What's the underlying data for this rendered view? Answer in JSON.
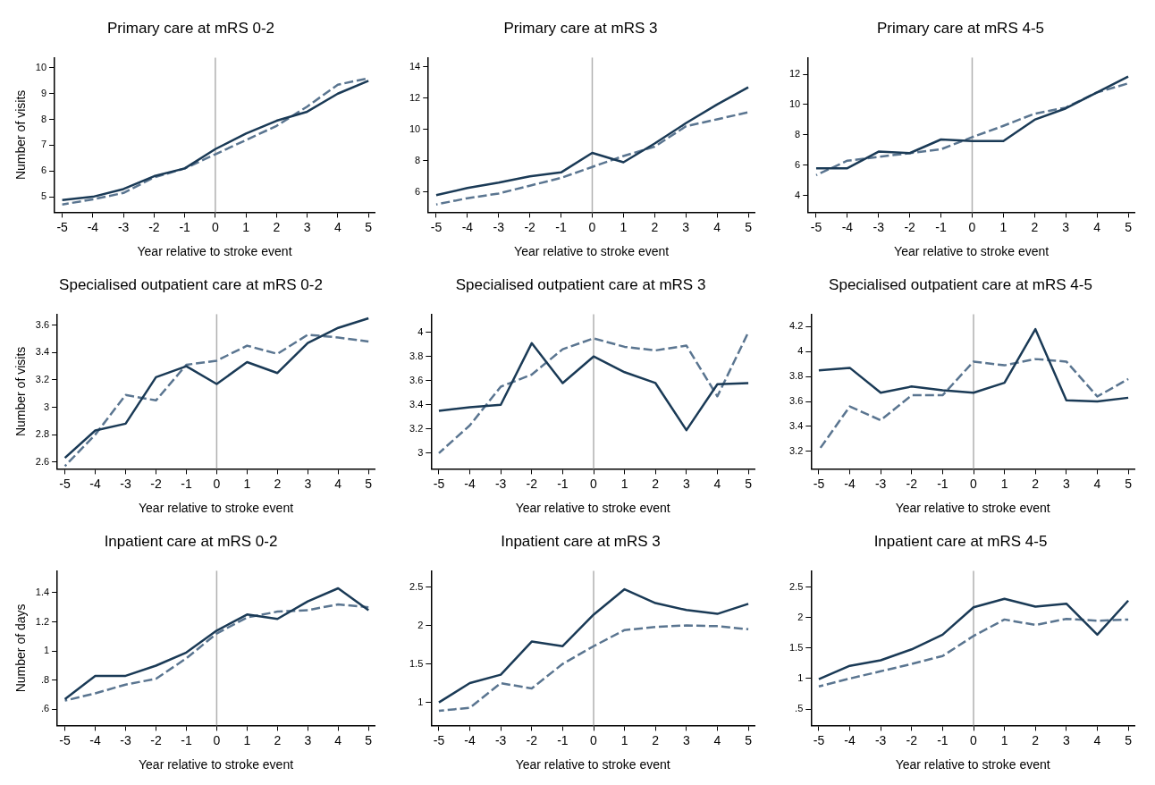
{
  "chart_data": [
    {
      "type": "line",
      "title": "Primary care at mRS 0-2",
      "xlabel": "Year relative to stroke event",
      "ylabel": "Number of visits",
      "x": [
        -5,
        -4,
        -3,
        -2,
        -1,
        0,
        1,
        2,
        3,
        4,
        5
      ],
      "xlim": [
        -5.25,
        5.2
      ],
      "xticks": [
        -5,
        -4,
        -3,
        -2,
        -1,
        0,
        1,
        2,
        3,
        4,
        5
      ],
      "ylim": [
        4.4,
        10.4
      ],
      "yticks": [
        5,
        6,
        7,
        8,
        9,
        10
      ],
      "grid": false,
      "legend": false,
      "marker": "none",
      "ref_lines": [
        {
          "axis": "x",
          "value": 0,
          "color": "#b0b0b0"
        }
      ],
      "series": [
        {
          "color": "#1a3a56",
          "line_style": "solid",
          "values": [
            4.87,
            5.0,
            5.3,
            5.8,
            6.1,
            6.85,
            7.45,
            7.95,
            8.3,
            9.0,
            9.5
          ]
        },
        {
          "color": "#5a7590",
          "line_style": "dashed",
          "values": [
            4.7,
            4.9,
            5.15,
            5.75,
            6.1,
            6.65,
            7.2,
            7.75,
            8.5,
            9.35,
            9.6
          ]
        }
      ]
    },
    {
      "type": "line",
      "title": "Primary care at mRS 3",
      "xlabel": "Year relative to stroke event",
      "x": [
        -5,
        -4,
        -3,
        -2,
        -1,
        0,
        1,
        2,
        3,
        4,
        5
      ],
      "xlim": [
        -5.25,
        5.2
      ],
      "xticks": [
        -5,
        -4,
        -3,
        -2,
        -1,
        0,
        1,
        2,
        3,
        4,
        5
      ],
      "ylim": [
        4.7,
        14.6
      ],
      "yticks": [
        6,
        8,
        10,
        12,
        14
      ],
      "grid": false,
      "legend": false,
      "marker": "none",
      "ref_lines": [
        {
          "axis": "x",
          "value": 0,
          "color": "#b0b0b0"
        }
      ],
      "series": [
        {
          "color": "#1a3a56",
          "line_style": "solid",
          "values": [
            5.8,
            6.25,
            6.6,
            7.0,
            7.25,
            8.5,
            7.9,
            9.1,
            10.4,
            11.6,
            12.7
          ]
        },
        {
          "color": "#5a7590",
          "line_style": "dashed",
          "values": [
            5.2,
            5.6,
            5.9,
            6.4,
            6.9,
            7.6,
            8.3,
            8.9,
            10.2,
            10.65,
            11.1
          ]
        }
      ]
    },
    {
      "type": "line",
      "title": "Primary care at mRS 4-5",
      "xlabel": "Year relative to stroke event",
      "x": [
        -5,
        -4,
        -3,
        -2,
        -1,
        0,
        1,
        2,
        3,
        4,
        5
      ],
      "xlim": [
        -5.25,
        5.2
      ],
      "xticks": [
        -5,
        -4,
        -3,
        -2,
        -1,
        0,
        1,
        2,
        3,
        4,
        5
      ],
      "ylim": [
        2.9,
        13.1
      ],
      "yticks": [
        4,
        6,
        8,
        10,
        12
      ],
      "grid": false,
      "legend": false,
      "marker": "none",
      "ref_lines": [
        {
          "axis": "x",
          "value": 0,
          "color": "#b0b0b0"
        }
      ],
      "series": [
        {
          "color": "#1a3a56",
          "line_style": "solid",
          "values": [
            5.8,
            5.8,
            6.9,
            6.8,
            7.7,
            7.6,
            7.6,
            9.0,
            9.75,
            10.8,
            11.85
          ]
        },
        {
          "color": "#5a7590",
          "line_style": "dashed",
          "values": [
            5.35,
            6.3,
            6.55,
            6.8,
            7.05,
            7.85,
            8.6,
            9.4,
            9.8,
            10.8,
            11.4
          ]
        }
      ]
    },
    {
      "type": "line",
      "title": "Specialised outpatient care at mRS 0-2",
      "xlabel": "Year relative to stroke event",
      "ylabel": "Number of visits",
      "x": [
        -5,
        -4,
        -3,
        -2,
        -1,
        0,
        1,
        2,
        3,
        4,
        5
      ],
      "xlim": [
        -5.25,
        5.2
      ],
      "xticks": [
        -5,
        -4,
        -3,
        -2,
        -1,
        0,
        1,
        2,
        3,
        4,
        5
      ],
      "ylim": [
        2.55,
        3.68
      ],
      "yticks": [
        2.6,
        2.8,
        3,
        3.2,
        3.4,
        3.6
      ],
      "grid": false,
      "legend": false,
      "marker": "none",
      "ref_lines": [
        {
          "axis": "x",
          "value": 0,
          "color": "#b0b0b0"
        }
      ],
      "series": [
        {
          "color": "#1a3a56",
          "line_style": "solid",
          "values": [
            2.63,
            2.83,
            2.88,
            3.22,
            3.3,
            3.17,
            3.33,
            3.25,
            3.47,
            3.58,
            3.65
          ]
        },
        {
          "color": "#5a7590",
          "line_style": "dashed",
          "values": [
            2.57,
            2.8,
            3.09,
            3.05,
            3.31,
            3.34,
            3.45,
            3.39,
            3.53,
            3.51,
            3.48
          ]
        }
      ]
    },
    {
      "type": "line",
      "title": "Specialised outpatient care at mRS 3",
      "xlabel": "Year relative to stroke event",
      "x": [
        -5,
        -4,
        -3,
        -2,
        -1,
        0,
        1,
        2,
        3,
        4,
        5
      ],
      "xlim": [
        -5.25,
        5.2
      ],
      "xticks": [
        -5,
        -4,
        -3,
        -2,
        -1,
        0,
        1,
        2,
        3,
        4,
        5
      ],
      "ylim": [
        2.87,
        4.15
      ],
      "yticks": [
        3,
        3.2,
        3.4,
        3.6,
        3.8,
        4
      ],
      "grid": false,
      "legend": false,
      "marker": "none",
      "ref_lines": [
        {
          "axis": "x",
          "value": 0,
          "color": "#b0b0b0"
        }
      ],
      "series": [
        {
          "color": "#1a3a56",
          "line_style": "solid",
          "values": [
            3.35,
            3.38,
            3.4,
            3.91,
            3.58,
            3.8,
            3.67,
            3.58,
            3.19,
            3.57,
            3.58
          ]
        },
        {
          "color": "#5a7590",
          "line_style": "dashed",
          "values": [
            3.0,
            3.23,
            3.55,
            3.65,
            3.86,
            3.95,
            3.88,
            3.85,
            3.89,
            3.47,
            4.0
          ]
        }
      ]
    },
    {
      "type": "line",
      "title": "Specialised outpatient care at mRS 4-5",
      "xlabel": "Year relative to stroke event",
      "x": [
        -5,
        -4,
        -3,
        -2,
        -1,
        0,
        1,
        2,
        3,
        4,
        5
      ],
      "xlim": [
        -5.25,
        5.2
      ],
      "xticks": [
        -5,
        -4,
        -3,
        -2,
        -1,
        0,
        1,
        2,
        3,
        4,
        5
      ],
      "ylim": [
        3.06,
        4.3
      ],
      "yticks": [
        3.2,
        3.4,
        3.6,
        3.8,
        4,
        4.2
      ],
      "grid": false,
      "legend": false,
      "marker": "none",
      "ref_lines": [
        {
          "axis": "x",
          "value": 0,
          "color": "#b0b0b0"
        }
      ],
      "series": [
        {
          "color": "#1a3a56",
          "line_style": "solid",
          "values": [
            3.85,
            3.87,
            3.67,
            3.72,
            3.69,
            3.67,
            3.75,
            4.18,
            3.61,
            3.6,
            3.63
          ]
        },
        {
          "color": "#5a7590",
          "line_style": "dashed",
          "values": [
            3.21,
            3.56,
            3.45,
            3.65,
            3.65,
            3.92,
            3.89,
            3.94,
            3.92,
            3.64,
            3.78
          ]
        }
      ]
    },
    {
      "type": "line",
      "title": "Inpatient care at mRS 0-2",
      "xlabel": "Year relative to stroke event",
      "ylabel": "Number of days",
      "x": [
        -5,
        -4,
        -3,
        -2,
        -1,
        0,
        1,
        2,
        3,
        4,
        5
      ],
      "xlim": [
        -5.25,
        5.2
      ],
      "xticks": [
        -5,
        -4,
        -3,
        -2,
        -1,
        0,
        1,
        2,
        3,
        4,
        5
      ],
      "ylim": [
        0.49,
        1.55
      ],
      "yticks": [
        {
          "value": 0.6,
          "label": ".6"
        },
        {
          "value": 0.8,
          "label": ".8"
        },
        1,
        1.2,
        1.4
      ],
      "grid": false,
      "legend": false,
      "marker": "none",
      "ref_lines": [
        {
          "axis": "x",
          "value": 0,
          "color": "#b0b0b0"
        }
      ],
      "series": [
        {
          "color": "#1a3a56",
          "line_style": "solid",
          "values": [
            0.67,
            0.83,
            0.83,
            0.9,
            0.99,
            1.14,
            1.25,
            1.22,
            1.34,
            1.43,
            1.28
          ]
        },
        {
          "color": "#5a7590",
          "line_style": "dashed",
          "values": [
            0.66,
            0.71,
            0.77,
            0.81,
            0.95,
            1.12,
            1.23,
            1.27,
            1.28,
            1.32,
            1.3
          ]
        }
      ]
    },
    {
      "type": "line",
      "title": "Inpatient care at mRS 3",
      "xlabel": "Year relative to stroke event",
      "x": [
        -5,
        -4,
        -3,
        -2,
        -1,
        0,
        1,
        2,
        3,
        4,
        5
      ],
      "xlim": [
        -5.25,
        5.2
      ],
      "xticks": [
        -5,
        -4,
        -3,
        -2,
        -1,
        0,
        1,
        2,
        3,
        4,
        5
      ],
      "ylim": [
        0.7,
        2.71
      ],
      "yticks": [
        1,
        1.5,
        2,
        2.5
      ],
      "grid": false,
      "legend": false,
      "marker": "none",
      "ref_lines": [
        {
          "axis": "x",
          "value": 0,
          "color": "#b0b0b0"
        }
      ],
      "series": [
        {
          "color": "#1a3a56",
          "line_style": "solid",
          "values": [
            1.0,
            1.25,
            1.36,
            1.79,
            1.73,
            2.14,
            2.47,
            2.29,
            2.2,
            2.15,
            2.28
          ]
        },
        {
          "color": "#5a7590",
          "line_style": "dashed",
          "values": [
            0.89,
            0.93,
            1.25,
            1.18,
            1.5,
            1.73,
            1.94,
            1.98,
            2.0,
            1.99,
            1.95
          ]
        }
      ]
    },
    {
      "type": "line",
      "title": "Inpatient care at mRS 4-5",
      "xlabel": "Year relative to stroke event",
      "x": [
        -5,
        -4,
        -3,
        -2,
        -1,
        0,
        1,
        2,
        3,
        4,
        5
      ],
      "xlim": [
        -5.25,
        5.2
      ],
      "xticks": [
        -5,
        -4,
        -3,
        -2,
        -1,
        0,
        1,
        2,
        3,
        4,
        5
      ],
      "ylim": [
        0.23,
        2.77
      ],
      "yticks": [
        {
          "value": 0.5,
          "label": ".5"
        },
        1,
        1.5,
        2,
        2.5
      ],
      "grid": false,
      "legend": false,
      "marker": "none",
      "ref_lines": [
        {
          "axis": "x",
          "value": 0,
          "color": "#b0b0b0"
        }
      ],
      "series": [
        {
          "color": "#1a3a56",
          "line_style": "solid",
          "values": [
            0.99,
            1.21,
            1.3,
            1.48,
            1.72,
            2.17,
            2.31,
            2.18,
            2.23,
            1.72,
            2.28
          ]
        },
        {
          "color": "#5a7590",
          "line_style": "dashed",
          "values": [
            0.87,
            1.0,
            1.12,
            1.24,
            1.37,
            1.7,
            1.97,
            1.88,
            1.98,
            1.95,
            1.97
          ]
        }
      ]
    }
  ]
}
